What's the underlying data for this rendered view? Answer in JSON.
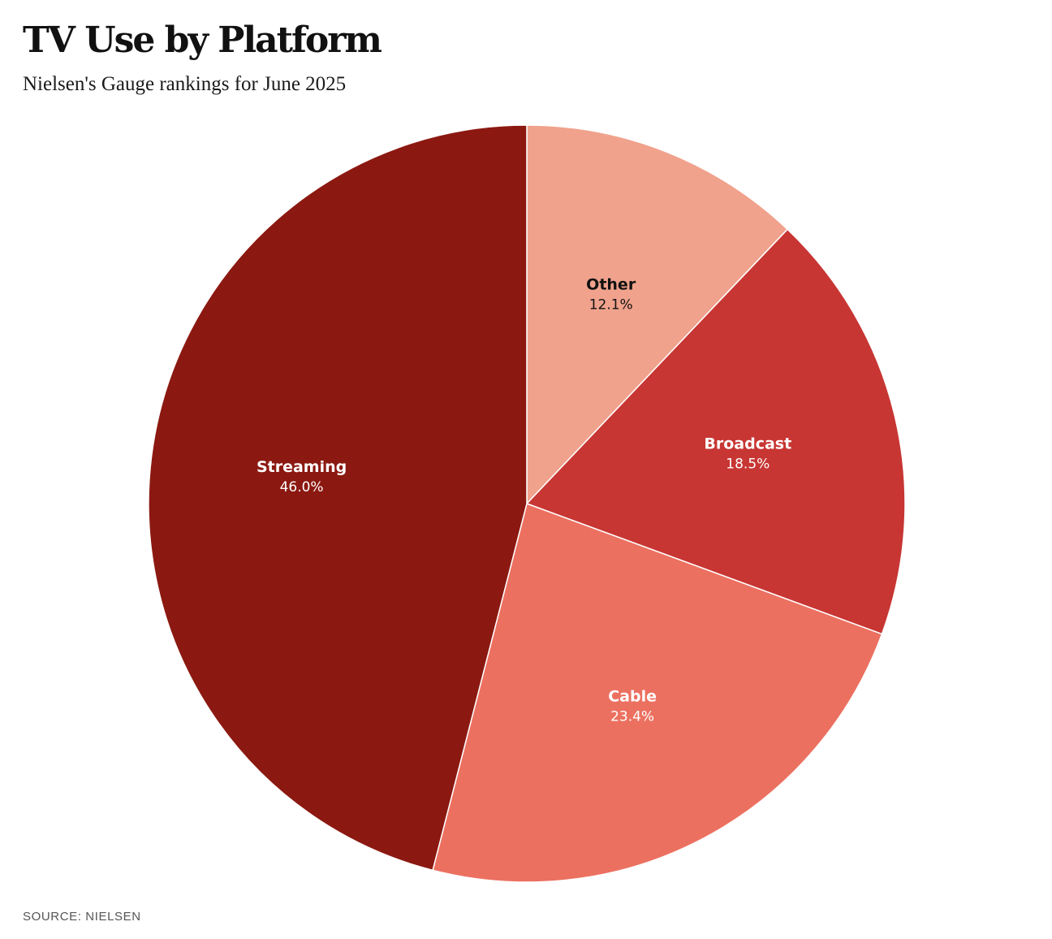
{
  "title": "TV Use by Platform",
  "subtitle": "Nielsen's Gauge rankings for June 2025",
  "source": "SOURCE: NIELSEN",
  "chart_data": {
    "type": "pie",
    "title": "TV Use by Platform",
    "subtitle": "Nielsen's Gauge rankings for June 2025",
    "slices": [
      {
        "label": "Other",
        "value": 12.1,
        "value_label": "12.1%",
        "color": "#F0A28C",
        "text_color": "#111111"
      },
      {
        "label": "Broadcast",
        "value": 18.5,
        "value_label": "18.5%",
        "color": "#C73633",
        "text_color": "#ffffff"
      },
      {
        "label": "Cable",
        "value": 23.4,
        "value_label": "23.4%",
        "color": "#EC7060",
        "text_color": "#ffffff"
      },
      {
        "label": "Streaming",
        "value": 46.0,
        "value_label": "46.0%",
        "color": "#8B1911",
        "text_color": "#ffffff"
      }
    ],
    "unit": "%",
    "start": "top",
    "direction": "clockwise",
    "legend": "none"
  }
}
